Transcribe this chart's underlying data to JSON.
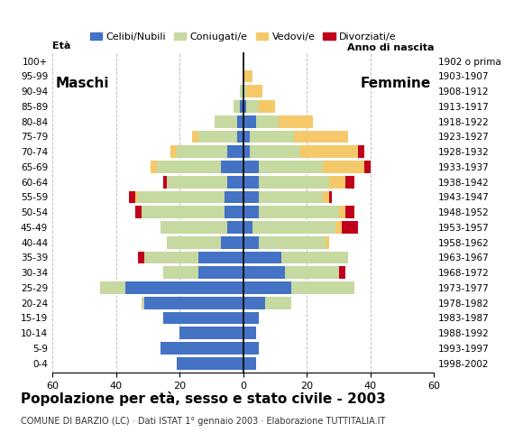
{
  "age_groups": [
    "0-4",
    "5-9",
    "10-14",
    "15-19",
    "20-24",
    "25-29",
    "30-34",
    "35-39",
    "40-44",
    "45-49",
    "50-54",
    "55-59",
    "60-64",
    "65-69",
    "70-74",
    "75-79",
    "80-84",
    "85-89",
    "90-94",
    "95-99",
    "100+"
  ],
  "birth_years": [
    "1998-2002",
    "1993-1997",
    "1988-1992",
    "1983-1987",
    "1978-1982",
    "1973-1977",
    "1968-1972",
    "1963-1967",
    "1958-1962",
    "1953-1957",
    "1948-1952",
    "1943-1947",
    "1938-1942",
    "1933-1937",
    "1928-1932",
    "1923-1927",
    "1918-1922",
    "1913-1917",
    "1908-1912",
    "1903-1907",
    "1902 o prima"
  ],
  "maschi_celibinubili": [
    21,
    26,
    20,
    25,
    31,
    37,
    14,
    14,
    7,
    5,
    6,
    6,
    5,
    7,
    5,
    2,
    2,
    1,
    0,
    0,
    0
  ],
  "maschi_coniugati": [
    0,
    0,
    0,
    0,
    1,
    8,
    11,
    17,
    17,
    21,
    26,
    27,
    19,
    20,
    16,
    12,
    7,
    2,
    1,
    0,
    0
  ],
  "maschi_vedovi": [
    0,
    0,
    0,
    0,
    0,
    0,
    0,
    0,
    0,
    0,
    0,
    1,
    0,
    2,
    2,
    2,
    0,
    0,
    0,
    0,
    0
  ],
  "maschi_divorziati": [
    0,
    0,
    0,
    0,
    0,
    0,
    0,
    2,
    0,
    0,
    2,
    2,
    1,
    0,
    0,
    0,
    0,
    0,
    0,
    0,
    0
  ],
  "femmine_celibinubili": [
    4,
    5,
    4,
    5,
    7,
    15,
    13,
    12,
    5,
    3,
    5,
    5,
    5,
    5,
    2,
    2,
    4,
    1,
    0,
    0,
    0
  ],
  "femmine_coniugate": [
    0,
    0,
    0,
    0,
    8,
    20,
    17,
    21,
    21,
    26,
    25,
    20,
    22,
    20,
    16,
    14,
    7,
    4,
    1,
    0,
    0
  ],
  "femmine_vedove": [
    0,
    0,
    0,
    0,
    0,
    0,
    0,
    0,
    1,
    2,
    2,
    2,
    5,
    13,
    18,
    17,
    11,
    5,
    5,
    3,
    0
  ],
  "femmine_divorziate": [
    0,
    0,
    0,
    0,
    0,
    0,
    2,
    0,
    0,
    5,
    3,
    1,
    3,
    2,
    2,
    0,
    0,
    0,
    0,
    0,
    0
  ],
  "color_celibinubili": "#4472C4",
  "color_coniugati": "#C5D9A0",
  "color_vedovi": "#F5C96A",
  "color_divorziati": "#C0001A",
  "title": "Popolazione per età, sesso e stato civile - 2003",
  "subtitle": "COMUNE DI BARZIO (LC) · Dati ISTAT 1° gennaio 2003 · Elaborazione TUTTITALIA.IT",
  "xlabel_left": "Età",
  "xlabel_right": "Anno di nascita",
  "xlim": 60,
  "xticks": [
    -60,
    -40,
    -20,
    0,
    20,
    40,
    60
  ],
  "legend_labels": [
    "Celibi/Nubili",
    "Coniugati/e",
    "Vedovi/e",
    "Divorziati/e"
  ],
  "maschi_label": "Maschi",
  "femmine_label": "Femmine"
}
